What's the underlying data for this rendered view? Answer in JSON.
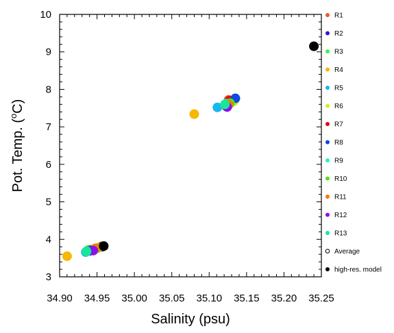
{
  "chart_data": {
    "type": "scatter",
    "xlabel": "Salinity (psu)",
    "ylabel_prefix": "Pot. Temp. (",
    "ylabel_sup": "o",
    "ylabel_suffix": "C)",
    "xlim": [
      34.9,
      35.25
    ],
    "ylim": [
      3,
      10
    ],
    "x_ticks": [
      34.9,
      34.95,
      35.0,
      35.05,
      35.1,
      35.15,
      35.2,
      35.25
    ],
    "x_tick_labels": [
      "34.90",
      "34.95",
      "35.00",
      "35.05",
      "35.10",
      "35.15",
      "35.20",
      "35.25"
    ],
    "y_ticks": [
      3,
      4,
      5,
      6,
      7,
      8,
      9,
      10
    ],
    "y_tick_labels": [
      "3",
      "4",
      "5",
      "6",
      "7",
      "8",
      "9",
      "10"
    ],
    "legend_position": "right",
    "series": [
      {
        "name": "R1",
        "color": "#f0582e",
        "points": [
          [
            34.956,
            3.81
          ],
          [
            35.126,
            7.72
          ]
        ]
      },
      {
        "name": "R2",
        "color": "#3d10d8",
        "points": [
          [
            34.94,
            3.69
          ],
          [
            35.124,
            7.54
          ]
        ]
      },
      {
        "name": "R3",
        "color": "#3df050",
        "points": [
          [
            34.938,
            3.71
          ],
          [
            35.121,
            7.57
          ]
        ]
      },
      {
        "name": "R4",
        "color": "#f6b800",
        "points": [
          [
            34.91,
            3.55
          ],
          [
            35.08,
            7.34
          ]
        ]
      },
      {
        "name": "R5",
        "color": "#18b8ee",
        "points": [
          [
            34.935,
            3.66
          ],
          [
            35.111,
            7.52
          ]
        ]
      },
      {
        "name": "R6",
        "color": "#c9f230",
        "points": [
          [
            34.943,
            3.74
          ],
          [
            35.133,
            7.68
          ]
        ]
      },
      {
        "name": "R7",
        "color": "#e00d10",
        "points": [
          [
            34.957,
            3.8
          ],
          [
            35.127,
            7.7
          ]
        ]
      },
      {
        "name": "R8",
        "color": "#1048e0",
        "points": [
          [
            34.941,
            3.71
          ],
          [
            35.135,
            7.76
          ]
        ]
      },
      {
        "name": "R9",
        "color": "#22f2c6",
        "points": [
          [
            34.937,
            3.68
          ],
          [
            35.123,
            7.62
          ]
        ]
      },
      {
        "name": "R10",
        "color": "#52e020",
        "points": [
          [
            34.951,
            3.77
          ],
          [
            35.128,
            7.63
          ]
        ]
      },
      {
        "name": "R11",
        "color": "#f27d00",
        "points": [
          [
            34.948,
            3.76
          ],
          [
            35.126,
            7.59
          ]
        ]
      },
      {
        "name": "R12",
        "color": "#8a10e8",
        "points": [
          [
            34.945,
            3.7
          ],
          [
            35.124,
            7.53
          ]
        ]
      },
      {
        "name": "R13",
        "color": "#18e896",
        "points": [
          [
            34.936,
            3.68
          ],
          [
            35.121,
            7.6
          ]
        ]
      },
      {
        "name": "Average",
        "color": "#000000",
        "marker": "open",
        "points": []
      },
      {
        "name": "high-res. model",
        "color": "#000000",
        "points": [
          [
            34.959,
            3.82
          ],
          [
            35.24,
            9.15
          ]
        ]
      }
    ]
  }
}
